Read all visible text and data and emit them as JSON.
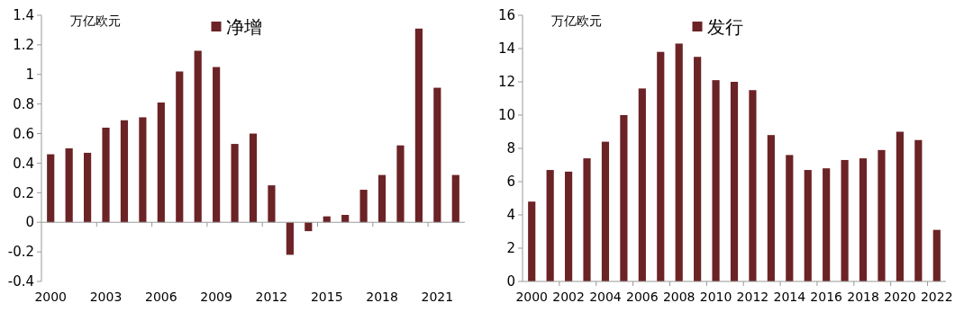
{
  "chart_data": [
    {
      "type": "bar",
      "ylabel": "万亿欧元",
      "categories": [
        "2000",
        null,
        null,
        "2003",
        null,
        null,
        "2006",
        null,
        null,
        "2009",
        null,
        null,
        "2012",
        null,
        null,
        "2015",
        null,
        null,
        "2018",
        null,
        null,
        "2021",
        null
      ],
      "series": [
        {
          "name": "净增",
          "color": "#6b2326",
          "values": [
            0.46,
            0.5,
            0.47,
            0.64,
            0.69,
            0.71,
            0.81,
            1.02,
            1.16,
            1.05,
            0.53,
            0.6,
            0.25,
            -0.22,
            -0.06,
            0.04,
            0.05,
            0.22,
            0.32,
            0.52,
            1.31,
            0.91,
            0.32
          ]
        }
      ],
      "ylim": [
        -0.4,
        1.4
      ],
      "yticks": [
        -0.4,
        -0.2,
        0,
        0.2,
        0.4,
        0.6,
        0.8,
        1,
        1.2,
        1.4
      ],
      "legend": "top"
    },
    {
      "type": "bar",
      "ylabel": "万亿欧元",
      "categories": [
        "2000",
        null,
        "2002",
        null,
        "2004",
        null,
        "2006",
        null,
        "2008",
        null,
        "2010",
        null,
        "2012",
        null,
        "2014",
        null,
        "2016",
        null,
        "2018",
        null,
        "2020",
        null,
        "2022"
      ],
      "series": [
        {
          "name": "发行",
          "color": "#6b2326",
          "values": [
            4.8,
            6.7,
            6.6,
            7.4,
            8.4,
            10.0,
            11.6,
            13.8,
            14.3,
            13.5,
            12.1,
            12.0,
            11.5,
            8.8,
            7.6,
            6.7,
            6.8,
            7.3,
            7.4,
            7.9,
            9.0,
            8.5,
            3.1
          ]
        }
      ],
      "ylim": [
        0,
        16
      ],
      "yticks": [
        0,
        2,
        4,
        6,
        8,
        10,
        12,
        14,
        16
      ],
      "legend": "top"
    }
  ]
}
